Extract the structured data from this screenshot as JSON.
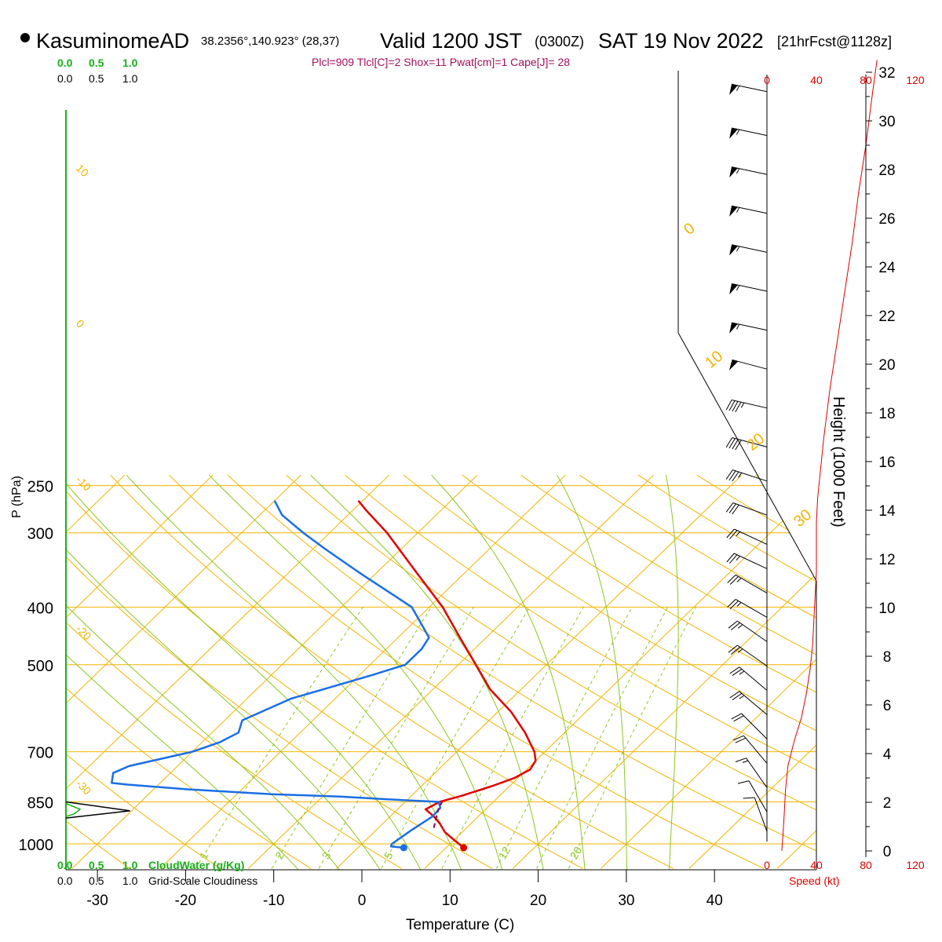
{
  "header": {
    "station": "KasuminomeAD",
    "coords": "38.2356°,140.923° (28,37)",
    "valid_label": "Valid 1200 JST",
    "zulu": "(0300Z)",
    "date": "SAT 19 Nov 2022",
    "forecast": "[21hrFcst@1128z]",
    "indices": "Plcl=909 Tlcl[C]=2 Shox=11 Pwat[cm]=1 Cape[J]= 28"
  },
  "colors": {
    "temperature": "#e00000",
    "dewpoint": "#1a6ee6",
    "isotherm": "#f0b400",
    "dry_adiabat": "#f0b400",
    "moist_adiabat": "#8cc61e",
    "mixing_ratio": "#8cc61e",
    "cloud": "#18b018",
    "parcel": "#7a0a5a",
    "indices_text": "#a0105a",
    "speed": "#e00000"
  },
  "labels": {
    "cloud_top": [
      "0.0",
      "0.5",
      "1.0"
    ],
    "cloud_scale_top": [
      "0.0",
      "0.5",
      "1.0"
    ],
    "cloud_bottom": [
      "0.0",
      "0.5",
      "1.0"
    ],
    "cloudwater": "CloudWater (g/Kg)",
    "cloudiness_scale": [
      "0.0",
      "0.5",
      "1.0"
    ],
    "cloudiness": "Grid-Scale Cloudiness",
    "speed_label": "Speed (kt)"
  },
  "chart_data": {
    "type": "skew-T log-P sounding",
    "xlabel": "Temperature (C)",
    "ylabel": "P (hPa)",
    "y2label": "Height (1000 Feet)",
    "pressure_ticks": [
      250,
      300,
      400,
      500,
      700,
      850,
      1000
    ],
    "temperature_ticks": [
      -30,
      -20,
      -10,
      0,
      10,
      20,
      30,
      40
    ],
    "height_ticks": [
      0,
      2,
      4,
      6,
      8,
      10,
      12,
      14,
      16,
      18,
      20,
      22,
      24,
      26,
      28,
      30,
      32
    ],
    "speed_ticks": [
      0,
      40,
      80,
      120
    ],
    "mixing_ratio_labels": [
      "1",
      "2",
      "3",
      "5",
      "12",
      "20"
    ],
    "dry_adiabat_labels": [
      "10",
      "0",
      "-10",
      "-20",
      "-30"
    ],
    "moist_adiabat_labels": [
      "0",
      "10",
      "20",
      "30"
    ],
    "temperature_profile": [
      {
        "p": 1015,
        "t": 12.0
      },
      {
        "p": 985,
        "t": 10.0
      },
      {
        "p": 955,
        "t": 8.0
      },
      {
        "p": 925,
        "t": 6.5
      },
      {
        "p": 900,
        "t": 5.0
      },
      {
        "p": 875,
        "t": 3.2
      },
      {
        "p": 850,
        "t": 3.9
      },
      {
        "p": 830,
        "t": 5.7
      },
      {
        "p": 800,
        "t": 8.0
      },
      {
        "p": 775,
        "t": 9.6
      },
      {
        "p": 750,
        "t": 10.4
      },
      {
        "p": 725,
        "t": 10.0
      },
      {
        "p": 700,
        "t": 8.8
      },
      {
        "p": 650,
        "t": 5.5
      },
      {
        "p": 600,
        "t": 1.5
      },
      {
        "p": 550,
        "t": -3.5
      },
      {
        "p": 500,
        "t": -8.0
      },
      {
        "p": 450,
        "t": -13.0
      },
      {
        "p": 400,
        "t": -18.5
      },
      {
        "p": 350,
        "t": -25.5
      },
      {
        "p": 300,
        "t": -33.5
      },
      {
        "p": 275,
        "t": -38.5
      },
      {
        "p": 265,
        "t": -40.5
      }
    ],
    "dewpoint_profile": [
      {
        "p": 1015,
        "t": 5.2
      },
      {
        "p": 1010,
        "t": 3.6
      },
      {
        "p": 1000,
        "t": 3.4
      },
      {
        "p": 950,
        "t": 4.0
      },
      {
        "p": 900,
        "t": 4.8
      },
      {
        "p": 870,
        "t": 4.7
      },
      {
        "p": 850,
        "t": 3.8
      },
      {
        "p": 842,
        "t": -2.0
      },
      {
        "p": 833,
        "t": -8.0
      },
      {
        "p": 825,
        "t": -16.0
      },
      {
        "p": 810,
        "t": -26.0
      },
      {
        "p": 795,
        "t": -33.5
      },
      {
        "p": 790,
        "t": -35.5
      },
      {
        "p": 760,
        "t": -36.5
      },
      {
        "p": 740,
        "t": -35.5
      },
      {
        "p": 700,
        "t": -30.0
      },
      {
        "p": 675,
        "t": -28.0
      },
      {
        "p": 650,
        "t": -27.0
      },
      {
        "p": 620,
        "t": -28.0
      },
      {
        "p": 570,
        "t": -25.0
      },
      {
        "p": 520,
        "t": -18.5
      },
      {
        "p": 500,
        "t": -16.0
      },
      {
        "p": 470,
        "t": -16.0
      },
      {
        "p": 450,
        "t": -16.5
      },
      {
        "p": 400,
        "t": -22.0
      },
      {
        "p": 350,
        "t": -32.0
      },
      {
        "p": 320,
        "t": -38.5
      },
      {
        "p": 300,
        "t": -43.0
      },
      {
        "p": 280,
        "t": -47.5
      },
      {
        "p": 265,
        "t": -50.0
      }
    ],
    "parcel_profile": [
      {
        "p": 940,
        "t": 6.3
      },
      {
        "p": 909,
        "t": 5.5
      },
      {
        "p": 870,
        "t": 4.5
      },
      {
        "p": 850,
        "t": 4.2
      }
    ],
    "surface": {
      "temperature": 12.0,
      "dewpoint": 5.2,
      "pressure": 1015
    },
    "cloudwater_profile": [
      {
        "p": 855,
        "v": 0.0
      },
      {
        "p": 875,
        "v": 0.25
      },
      {
        "p": 890,
        "v": 0.15
      },
      {
        "p": 900,
        "v": 0.0
      }
    ],
    "cloudiness_profile": [
      {
        "p": 850,
        "v": 0.0
      },
      {
        "p": 880,
        "v": 0.95
      },
      {
        "p": 905,
        "v": 0.0
      }
    ],
    "wind_barbs": [
      {
        "h": 31.2,
        "dir": 282,
        "spd": 55
      },
      {
        "h": 29.4,
        "dir": 282,
        "spd": 55
      },
      {
        "h": 27.8,
        "dir": 282,
        "spd": 55
      },
      {
        "h": 26.2,
        "dir": 282,
        "spd": 55
      },
      {
        "h": 24.6,
        "dir": 282,
        "spd": 55
      },
      {
        "h": 23.0,
        "dir": 282,
        "spd": 55
      },
      {
        "h": 21.4,
        "dir": 282,
        "spd": 55
      },
      {
        "h": 19.8,
        "dir": 285,
        "spd": 50
      },
      {
        "h": 18.2,
        "dir": 283,
        "spd": 45
      },
      {
        "h": 16.6,
        "dir": 285,
        "spd": 40
      },
      {
        "h": 15.2,
        "dir": 288,
        "spd": 35
      },
      {
        "h": 13.8,
        "dir": 290,
        "spd": 30
      },
      {
        "h": 12.6,
        "dir": 295,
        "spd": 25
      },
      {
        "h": 11.6,
        "dir": 295,
        "spd": 25
      },
      {
        "h": 10.6,
        "dir": 300,
        "spd": 25
      },
      {
        "h": 9.6,
        "dir": 300,
        "spd": 25
      },
      {
        "h": 8.6,
        "dir": 305,
        "spd": 25
      },
      {
        "h": 7.6,
        "dir": 305,
        "spd": 25
      },
      {
        "h": 6.6,
        "dir": 310,
        "spd": 25
      },
      {
        "h": 5.6,
        "dir": 310,
        "spd": 25
      },
      {
        "h": 4.6,
        "dir": 315,
        "spd": 20
      },
      {
        "h": 3.6,
        "dir": 320,
        "spd": 20
      },
      {
        "h": 2.6,
        "dir": 325,
        "spd": 15
      },
      {
        "h": 1.6,
        "dir": 330,
        "spd": 10
      },
      {
        "h": 0.8,
        "dir": 340,
        "spd": 10
      }
    ],
    "speed_profile": [
      {
        "h": 0,
        "s": 12
      },
      {
        "h": 0.7,
        "s": 13
      },
      {
        "h": 1.5,
        "s": 14
      },
      {
        "h": 2.5,
        "s": 15
      },
      {
        "h": 3.5,
        "s": 17
      },
      {
        "h": 4.5,
        "s": 22
      },
      {
        "h": 5.5,
        "s": 28
      },
      {
        "h": 6.5,
        "s": 32
      },
      {
        "h": 7.5,
        "s": 35
      },
      {
        "h": 8.5,
        "s": 37
      },
      {
        "h": 9.5,
        "s": 38
      },
      {
        "h": 10.5,
        "s": 39
      },
      {
        "h": 11.5,
        "s": 40
      },
      {
        "h": 12.5,
        "s": 40
      },
      {
        "h": 13.5,
        "s": 40
      },
      {
        "h": 14.5,
        "s": 41
      },
      {
        "h": 15.5,
        "s": 43
      },
      {
        "h": 17,
        "s": 46
      },
      {
        "h": 19,
        "s": 51
      },
      {
        "h": 21,
        "s": 57
      },
      {
        "h": 23,
        "s": 63
      },
      {
        "h": 25,
        "s": 69
      },
      {
        "h": 27,
        "s": 74
      },
      {
        "h": 29,
        "s": 80
      },
      {
        "h": 31,
        "s": 85
      },
      {
        "h": 32.5,
        "s": 89
      }
    ]
  }
}
